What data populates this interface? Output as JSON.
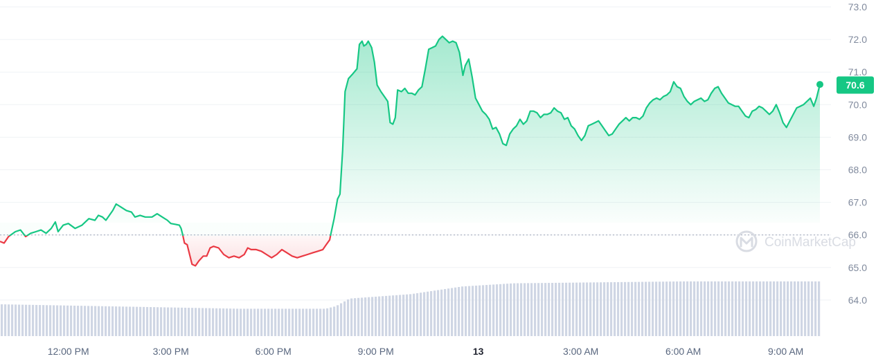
{
  "chart_data": {
    "type": "line",
    "watermark": "CoinMarketCap",
    "baseline_value": 66.0,
    "last_value_label": "70.6",
    "colors": {
      "up": "#16c784",
      "down": "#ea3943",
      "volume": "#cfd6e4",
      "grid": "#eff2f5",
      "axis_text": "#808a9d"
    },
    "ylim": [
      63.0,
      73.0
    ],
    "y_ticks": [
      "64.0",
      "65.0",
      "66.0",
      "67.0",
      "68.0",
      "69.0",
      "70.0",
      "71.0",
      "72.0",
      "73.0"
    ],
    "x_range_hours": [
      10,
      34
    ],
    "x_ticks": [
      {
        "label": "12:00 PM",
        "hour": 12,
        "bold": false
      },
      {
        "label": "3:00 PM",
        "hour": 15,
        "bold": false
      },
      {
        "label": "6:00 PM",
        "hour": 18,
        "bold": false
      },
      {
        "label": "9:00 PM",
        "hour": 21,
        "bold": false
      },
      {
        "label": "13",
        "hour": 24,
        "bold": true
      },
      {
        "label": "3:00 AM",
        "hour": 27,
        "bold": false
      },
      {
        "label": "6:00 AM",
        "hour": 30,
        "bold": false
      },
      {
        "label": "9:00 AM",
        "hour": 33,
        "bold": false
      }
    ],
    "series": [
      {
        "points": [
          [
            10.0,
            65.8
          ],
          [
            10.12,
            65.75
          ],
          [
            10.25,
            65.95
          ],
          [
            10.45,
            66.1
          ],
          [
            10.6,
            66.15
          ],
          [
            10.75,
            65.95
          ],
          [
            10.9,
            66.05
          ],
          [
            11.05,
            66.1
          ],
          [
            11.2,
            66.15
          ],
          [
            11.35,
            66.05
          ],
          [
            11.5,
            66.2
          ],
          [
            11.62,
            66.4
          ],
          [
            11.7,
            66.1
          ],
          [
            11.85,
            66.3
          ],
          [
            12.0,
            66.35
          ],
          [
            12.2,
            66.2
          ],
          [
            12.4,
            66.3
          ],
          [
            12.6,
            66.5
          ],
          [
            12.78,
            66.45
          ],
          [
            12.88,
            66.6
          ],
          [
            13.0,
            66.55
          ],
          [
            13.1,
            66.45
          ],
          [
            13.2,
            66.6
          ],
          [
            13.3,
            66.75
          ],
          [
            13.4,
            66.95
          ],
          [
            13.55,
            66.85
          ],
          [
            13.7,
            66.75
          ],
          [
            13.85,
            66.7
          ],
          [
            13.95,
            66.55
          ],
          [
            14.1,
            66.6
          ],
          [
            14.25,
            66.55
          ],
          [
            14.45,
            66.55
          ],
          [
            14.6,
            66.65
          ],
          [
            14.75,
            66.55
          ],
          [
            14.9,
            66.45
          ],
          [
            15.0,
            66.35
          ],
          [
            15.15,
            66.32
          ],
          [
            15.25,
            66.3
          ],
          [
            15.3,
            66.2
          ],
          [
            15.35,
            66.0
          ],
          [
            15.4,
            65.75
          ],
          [
            15.48,
            65.7
          ],
          [
            15.55,
            65.4
          ],
          [
            15.62,
            65.1
          ],
          [
            15.72,
            65.05
          ],
          [
            15.82,
            65.2
          ],
          [
            15.95,
            65.35
          ],
          [
            16.05,
            65.35
          ],
          [
            16.15,
            65.6
          ],
          [
            16.25,
            65.65
          ],
          [
            16.4,
            65.6
          ],
          [
            16.55,
            65.4
          ],
          [
            16.7,
            65.3
          ],
          [
            16.85,
            65.35
          ],
          [
            17.0,
            65.3
          ],
          [
            17.15,
            65.4
          ],
          [
            17.25,
            65.6
          ],
          [
            17.35,
            65.55
          ],
          [
            17.5,
            65.55
          ],
          [
            17.65,
            65.5
          ],
          [
            17.8,
            65.4
          ],
          [
            17.95,
            65.3
          ],
          [
            18.1,
            65.4
          ],
          [
            18.25,
            65.55
          ],
          [
            18.4,
            65.45
          ],
          [
            18.55,
            65.35
          ],
          [
            18.7,
            65.3
          ],
          [
            18.85,
            65.35
          ],
          [
            19.0,
            65.4
          ],
          [
            19.15,
            65.45
          ],
          [
            19.3,
            65.5
          ],
          [
            19.45,
            65.55
          ],
          [
            19.55,
            65.7
          ],
          [
            19.65,
            65.85
          ],
          [
            19.68,
            66.0
          ],
          [
            19.78,
            66.5
          ],
          [
            19.88,
            67.1
          ],
          [
            19.95,
            67.25
          ],
          [
            20.03,
            68.6
          ],
          [
            20.1,
            70.4
          ],
          [
            20.2,
            70.8
          ],
          [
            20.33,
            70.95
          ],
          [
            20.45,
            71.1
          ],
          [
            20.52,
            71.85
          ],
          [
            20.6,
            71.95
          ],
          [
            20.65,
            71.8
          ],
          [
            20.72,
            71.85
          ],
          [
            20.78,
            71.95
          ],
          [
            20.88,
            71.75
          ],
          [
            20.96,
            71.3
          ],
          [
            21.04,
            70.6
          ],
          [
            21.15,
            70.4
          ],
          [
            21.25,
            70.25
          ],
          [
            21.35,
            70.1
          ],
          [
            21.42,
            69.45
          ],
          [
            21.5,
            69.4
          ],
          [
            21.57,
            69.6
          ],
          [
            21.64,
            70.45
          ],
          [
            21.75,
            70.4
          ],
          [
            21.85,
            70.5
          ],
          [
            21.95,
            70.35
          ],
          [
            22.05,
            70.35
          ],
          [
            22.15,
            70.3
          ],
          [
            22.25,
            70.45
          ],
          [
            22.35,
            70.55
          ],
          [
            22.45,
            71.1
          ],
          [
            22.55,
            71.7
          ],
          [
            22.65,
            71.75
          ],
          [
            22.75,
            71.8
          ],
          [
            22.85,
            72.0
          ],
          [
            22.95,
            72.1
          ],
          [
            23.05,
            72.0
          ],
          [
            23.15,
            71.9
          ],
          [
            23.25,
            71.95
          ],
          [
            23.35,
            71.9
          ],
          [
            23.45,
            71.6
          ],
          [
            23.55,
            70.9
          ],
          [
            23.62,
            71.2
          ],
          [
            23.72,
            71.4
          ],
          [
            23.82,
            70.85
          ],
          [
            23.92,
            70.2
          ],
          [
            24.02,
            70.0
          ],
          [
            24.12,
            69.8
          ],
          [
            24.22,
            69.7
          ],
          [
            24.32,
            69.55
          ],
          [
            24.42,
            69.25
          ],
          [
            24.52,
            69.3
          ],
          [
            24.62,
            69.1
          ],
          [
            24.72,
            68.8
          ],
          [
            24.82,
            68.75
          ],
          [
            24.92,
            69.1
          ],
          [
            25.02,
            69.25
          ],
          [
            25.12,
            69.35
          ],
          [
            25.22,
            69.55
          ],
          [
            25.32,
            69.4
          ],
          [
            25.42,
            69.5
          ],
          [
            25.52,
            69.8
          ],
          [
            25.62,
            69.8
          ],
          [
            25.72,
            69.75
          ],
          [
            25.82,
            69.6
          ],
          [
            25.92,
            69.7
          ],
          [
            26.02,
            69.7
          ],
          [
            26.12,
            69.75
          ],
          [
            26.22,
            69.9
          ],
          [
            26.32,
            69.8
          ],
          [
            26.42,
            69.75
          ],
          [
            26.52,
            69.55
          ],
          [
            26.62,
            69.6
          ],
          [
            26.72,
            69.35
          ],
          [
            26.82,
            69.25
          ],
          [
            26.92,
            69.05
          ],
          [
            27.02,
            68.9
          ],
          [
            27.12,
            69.05
          ],
          [
            27.22,
            69.35
          ],
          [
            27.32,
            69.4
          ],
          [
            27.42,
            69.45
          ],
          [
            27.52,
            69.5
          ],
          [
            27.62,
            69.35
          ],
          [
            27.72,
            69.2
          ],
          [
            27.82,
            69.05
          ],
          [
            27.92,
            69.1
          ],
          [
            28.02,
            69.25
          ],
          [
            28.12,
            69.4
          ],
          [
            28.22,
            69.5
          ],
          [
            28.32,
            69.6
          ],
          [
            28.42,
            69.5
          ],
          [
            28.52,
            69.6
          ],
          [
            28.62,
            69.6
          ],
          [
            28.72,
            69.55
          ],
          [
            28.82,
            69.65
          ],
          [
            28.92,
            69.9
          ],
          [
            29.02,
            70.05
          ],
          [
            29.12,
            70.15
          ],
          [
            29.22,
            70.2
          ],
          [
            29.32,
            70.15
          ],
          [
            29.42,
            70.25
          ],
          [
            29.52,
            70.3
          ],
          [
            29.62,
            70.4
          ],
          [
            29.72,
            70.7
          ],
          [
            29.82,
            70.55
          ],
          [
            29.92,
            70.5
          ],
          [
            30.02,
            70.25
          ],
          [
            30.12,
            70.1
          ],
          [
            30.22,
            70.0
          ],
          [
            30.32,
            70.1
          ],
          [
            30.42,
            70.15
          ],
          [
            30.52,
            70.2
          ],
          [
            30.62,
            70.1
          ],
          [
            30.72,
            70.15
          ],
          [
            30.82,
            70.35
          ],
          [
            30.92,
            70.5
          ],
          [
            31.02,
            70.55
          ],
          [
            31.12,
            70.35
          ],
          [
            31.22,
            70.2
          ],
          [
            31.32,
            70.05
          ],
          [
            31.42,
            70.0
          ],
          [
            31.52,
            69.95
          ],
          [
            31.62,
            69.95
          ],
          [
            31.72,
            69.8
          ],
          [
            31.82,
            69.65
          ],
          [
            31.92,
            69.6
          ],
          [
            32.02,
            69.8
          ],
          [
            32.12,
            69.85
          ],
          [
            32.22,
            69.95
          ],
          [
            32.32,
            69.9
          ],
          [
            32.42,
            69.8
          ],
          [
            32.52,
            69.7
          ],
          [
            32.62,
            69.8
          ],
          [
            32.72,
            70.0
          ],
          [
            32.82,
            69.75
          ],
          [
            32.92,
            69.45
          ],
          [
            33.02,
            69.3
          ],
          [
            33.12,
            69.5
          ],
          [
            33.22,
            69.7
          ],
          [
            33.32,
            69.9
          ],
          [
            33.42,
            69.95
          ],
          [
            33.52,
            70.0
          ],
          [
            33.62,
            70.1
          ],
          [
            33.72,
            70.2
          ],
          [
            33.82,
            69.95
          ],
          [
            33.9,
            70.2
          ],
          [
            34.0,
            70.62
          ]
        ]
      }
    ],
    "volume": {
      "unit": "relative",
      "breakpoints": [
        [
          10.0,
          0.5
        ],
        [
          13.0,
          0.47
        ],
        [
          15.0,
          0.45
        ],
        [
          17.0,
          0.43
        ],
        [
          19.5,
          0.43
        ],
        [
          19.8,
          0.47
        ],
        [
          20.2,
          0.59
        ],
        [
          22.0,
          0.66
        ],
        [
          23.5,
          0.78
        ],
        [
          25.0,
          0.83
        ],
        [
          30.0,
          0.86
        ],
        [
          34.0,
          0.86
        ]
      ]
    }
  }
}
